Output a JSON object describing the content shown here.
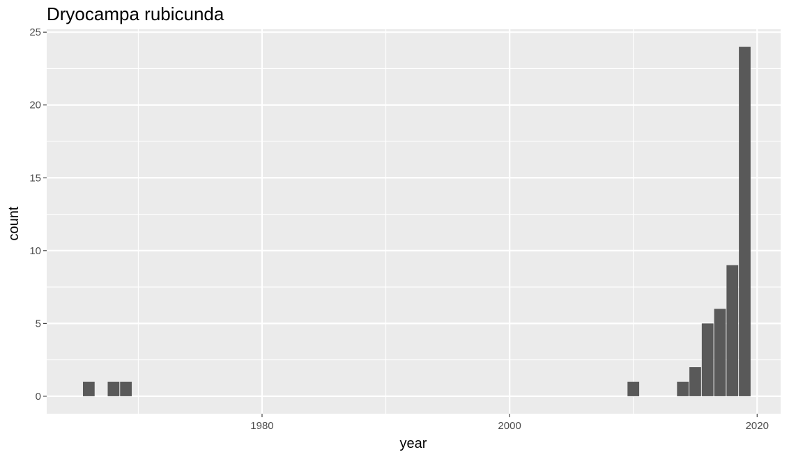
{
  "chart_data": {
    "type": "bar",
    "title": "Dryocampa rubicunda",
    "xlabel": "year",
    "ylabel": "count",
    "x": [
      1966,
      1968,
      1969,
      2010,
      2014,
      2015,
      2016,
      2017,
      2018,
      2019
    ],
    "values": [
      1,
      1,
      1,
      1,
      1,
      2,
      5,
      6,
      9,
      24
    ],
    "xlim": [
      1962.6,
      2021.9
    ],
    "ylim": [
      -1.2,
      25.2
    ],
    "xticks": [
      1980,
      2000,
      2020
    ],
    "yticks": [
      0,
      5,
      10,
      15,
      20,
      25
    ],
    "grid": true,
    "bar_color": "#595959",
    "panel_color": "#ebebeb",
    "grid_color": "#ffffff"
  }
}
